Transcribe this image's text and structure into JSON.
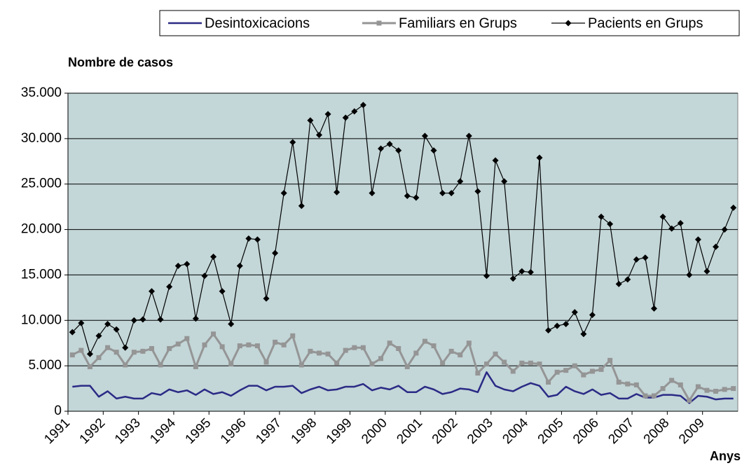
{
  "chart_data": {
    "type": "line",
    "y_label": "Nombre de casos",
    "x_label": "Anys",
    "legend": "top-right",
    "background": "#c3d6d8",
    "grid": true,
    "categories": [
      "1991",
      null,
      null,
      null,
      "1992",
      null,
      null,
      null,
      "1993",
      null,
      null,
      null,
      "1994",
      null,
      null,
      null,
      "1995",
      null,
      null,
      null,
      "1996",
      null,
      null,
      null,
      "1997",
      null,
      null,
      null,
      "1998",
      null,
      null,
      null,
      "1999",
      null,
      null,
      null,
      "2000",
      null,
      null,
      null,
      "2001",
      null,
      null,
      null,
      "2002",
      null,
      null,
      null,
      "2003",
      null,
      null,
      null,
      "2004",
      null,
      null,
      null,
      "2005",
      null,
      null,
      null,
      "2006",
      null,
      null,
      null,
      "2007",
      null,
      null,
      null,
      "2008",
      null,
      null,
      null,
      "2009",
      null,
      null,
      null
    ],
    "ylim": [
      0,
      35000
    ],
    "yticks": [
      0,
      {
        "value": 5000,
        "label": "5.000"
      },
      {
        "value": 10000,
        "label": "10.000"
      },
      {
        "value": 15000,
        "label": "15.000"
      },
      {
        "value": 20000,
        "label": "20.000"
      },
      {
        "value": 25000,
        "label": "25.000"
      },
      {
        "value": 30000,
        "label": "30.000"
      },
      {
        "value": 35000,
        "label": "35.000"
      }
    ],
    "series": [
      {
        "name": "Desintoxicacions",
        "color": "#2b2a85",
        "width": 2.5,
        "values": [
          2700,
          2800,
          2800,
          1600,
          2200,
          1400,
          1600,
          1400,
          1400,
          2000,
          1800,
          2400,
          2100,
          2300,
          1800,
          2400,
          1900,
          2100,
          1700,
          2300,
          2800,
          2800,
          2300,
          2700,
          2700,
          2800,
          2000,
          2400,
          2700,
          2300,
          2400,
          2700,
          2700,
          3000,
          2300,
          2600,
          2400,
          2800,
          2100,
          2100,
          2700,
          2400,
          1900,
          2100,
          2500,
          2400,
          2100,
          4300,
          2800,
          2400,
          2200,
          2700,
          3100,
          2800,
          1600,
          1800,
          2700,
          2200,
          1900,
          2400,
          1800,
          2000,
          1400,
          1400,
          1900,
          1500,
          1500,
          1800,
          1800,
          1700,
          900,
          1700,
          1600,
          1300,
          1400,
          1400
        ]
      },
      {
        "name": "Familiars en Grups",
        "color": "#959595",
        "width": 3,
        "marker": "square",
        "values": [
          6200,
          6700,
          4900,
          5900,
          7000,
          6500,
          5100,
          6500,
          6600,
          6900,
          5100,
          6900,
          7400,
          8000,
          4900,
          7300,
          8500,
          7100,
          5200,
          7200,
          7300,
          7200,
          5400,
          7600,
          7300,
          8300,
          5100,
          6600,
          6400,
          6300,
          5300,
          6700,
          7000,
          7000,
          5200,
          5800,
          7500,
          6900,
          4900,
          6400,
          7700,
          7200,
          5300,
          6600,
          6200,
          7500,
          4200,
          5200,
          6300,
          5400,
          4400,
          5300,
          5300,
          5200,
          3200,
          4300,
          4500,
          5000,
          4000,
          4400,
          4600,
          5600,
          3200,
          3000,
          2900,
          1700,
          1700,
          2500,
          3400,
          2900,
          1200,
          2700,
          2300,
          2200,
          2400,
          2500
        ]
      },
      {
        "name": "Pacients en Grups",
        "color": "#000000",
        "width": 1.2,
        "marker": "diamond",
        "values": [
          8700,
          9700,
          6300,
          8300,
          9600,
          9000,
          7000,
          10000,
          10100,
          13200,
          10100,
          13700,
          16000,
          16200,
          10200,
          14900,
          17000,
          13200,
          9600,
          16000,
          19000,
          18900,
          12400,
          17400,
          24000,
          29600,
          22600,
          32000,
          30400,
          32700,
          24100,
          32300,
          33000,
          33700,
          24000,
          28900,
          29400,
          28700,
          23700,
          23500,
          30300,
          28700,
          24000,
          24000,
          25300,
          30300,
          24200,
          14900,
          27600,
          25300,
          14600,
          15400,
          15300,
          27900,
          8900,
          9400,
          9600,
          10900,
          8500,
          10600,
          21400,
          20600,
          14000,
          14500,
          16700,
          16900,
          11300,
          21400,
          20100,
          20700,
          15000,
          18900,
          15400,
          18100,
          20000,
          22400
        ]
      }
    ]
  }
}
